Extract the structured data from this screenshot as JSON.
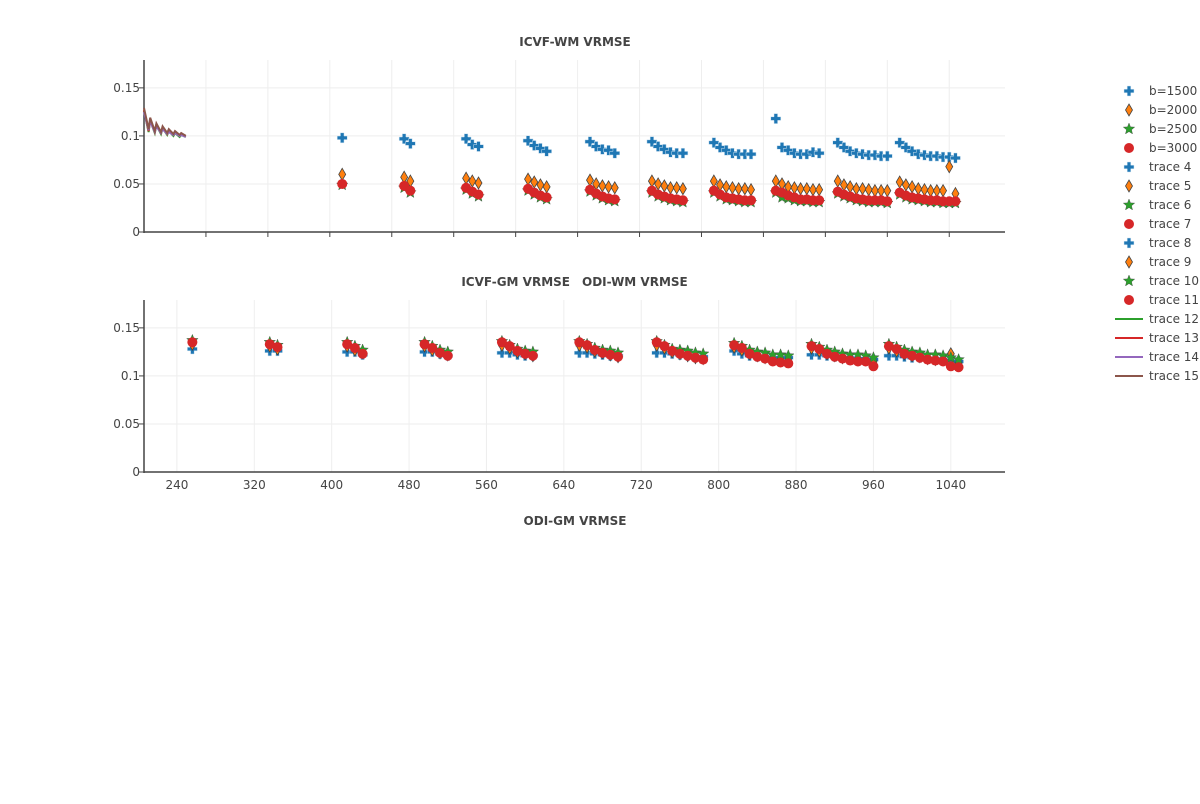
{
  "chart_data": [
    {
      "type": "scatter",
      "title": "ICVF-WM VRMSE",
      "xlim": [
        0,
        1112
      ],
      "ylim": [
        0,
        0.179
      ],
      "x_ticks_shown": false,
      "y_ticks": [
        0,
        0.05,
        0.1,
        0.15
      ],
      "y_tick_labels": [
        "0",
        "0.05",
        "0.1",
        "0.15"
      ],
      "grid": true,
      "series": [
        {
          "name": "b=1500",
          "marker": "cross",
          "color": "#1f77b4",
          "y": [
            [
              0.098
            ],
            [
              0.097,
              0.092
            ],
            [
              0.097,
              0.091,
              0.089
            ],
            [
              0.095,
              0.09,
              0.087,
              0.084
            ],
            [
              0.094,
              0.089,
              0.086,
              0.085,
              0.082
            ],
            [
              0.094,
              0.089,
              0.086,
              0.083,
              0.082,
              0.082
            ],
            [
              0.093,
              0.088,
              0.085,
              0.082,
              0.081,
              0.081,
              0.081
            ],
            [
              0.118,
              0.088,
              0.085,
              0.082,
              0.081,
              0.081,
              0.083,
              0.082
            ],
            [
              0.093,
              0.088,
              0.084,
              0.082,
              0.081,
              0.08,
              0.08,
              0.079,
              0.079
            ],
            [
              0.093,
              0.088,
              0.084,
              0.081,
              0.08,
              0.079,
              0.079,
              0.078,
              0.078,
              0.077
            ]
          ]
        },
        {
          "name": "b=2000",
          "marker": "diamond",
          "color": "#ff7f0e",
          "y": [
            [
              0.06
            ],
            [
              0.057,
              0.053
            ],
            [
              0.056,
              0.053,
              0.051
            ],
            [
              0.055,
              0.052,
              0.049,
              0.047
            ],
            [
              0.054,
              0.05,
              0.048,
              0.047,
              0.046
            ],
            [
              0.053,
              0.05,
              0.048,
              0.046,
              0.046,
              0.045
            ],
            [
              0.053,
              0.049,
              0.047,
              0.046,
              0.045,
              0.045,
              0.044
            ],
            [
              0.053,
              0.05,
              0.047,
              0.046,
              0.045,
              0.045,
              0.044,
              0.044
            ],
            [
              0.053,
              0.049,
              0.047,
              0.045,
              0.045,
              0.044,
              0.043,
              0.043,
              0.043
            ],
            [
              0.052,
              0.049,
              0.047,
              0.045,
              0.044,
              0.043,
              0.043,
              0.043,
              0.068,
              0.04
            ]
          ]
        },
        {
          "name": "b=2500",
          "marker": "star",
          "color": "#2ca02c",
          "y": [
            [
              0.049
            ],
            [
              0.046,
              0.041
            ],
            [
              0.044,
              0.04,
              0.037
            ],
            [
              0.043,
              0.039,
              0.036,
              0.034
            ],
            [
              0.042,
              0.038,
              0.035,
              0.033,
              0.032
            ],
            [
              0.041,
              0.037,
              0.035,
              0.033,
              0.032,
              0.031
            ],
            [
              0.041,
              0.037,
              0.034,
              0.033,
              0.032,
              0.031,
              0.031
            ],
            [
              0.041,
              0.036,
              0.035,
              0.033,
              0.032,
              0.032,
              0.031,
              0.031
            ],
            [
              0.04,
              0.037,
              0.035,
              0.033,
              0.032,
              0.031,
              0.031,
              0.031,
              0.03
            ],
            [
              0.039,
              0.036,
              0.034,
              0.033,
              0.032,
              0.031,
              0.031,
              0.03,
              0.03,
              0.03
            ]
          ]
        },
        {
          "name": "b=3000",
          "marker": "circle",
          "color": "#d62728",
          "y": [
            [
              0.05
            ],
            [
              0.048,
              0.043
            ],
            [
              0.046,
              0.042,
              0.039
            ],
            [
              0.045,
              0.041,
              0.038,
              0.036
            ],
            [
              0.044,
              0.04,
              0.037,
              0.035,
              0.034
            ],
            [
              0.043,
              0.039,
              0.037,
              0.035,
              0.034,
              0.033
            ],
            [
              0.043,
              0.039,
              0.036,
              0.035,
              0.034,
              0.033,
              0.033
            ],
            [
              0.043,
              0.041,
              0.038,
              0.036,
              0.034,
              0.034,
              0.033,
              0.033
            ],
            [
              0.042,
              0.039,
              0.037,
              0.035,
              0.034,
              0.033,
              0.033,
              0.033,
              0.032
            ],
            [
              0.041,
              0.038,
              0.036,
              0.035,
              0.034,
              0.033,
              0.033,
              0.032,
              0.032,
              0.032
            ]
          ]
        },
        {
          "name": "trace 12",
          "line": true,
          "color": "#2ca02c",
          "x": [
            0,
            6,
            8,
            14,
            16,
            22,
            24,
            30,
            32,
            38,
            40,
            46,
            48,
            54
          ],
          "y": [
            0.126,
            0.104,
            0.116,
            0.103,
            0.111,
            0.102,
            0.108,
            0.101,
            0.105,
            0.1,
            0.103,
            0.099,
            0.101,
            0.099
          ]
        },
        {
          "name": "trace 13",
          "line": true,
          "color": "#d62728",
          "x": [
            0,
            6,
            8,
            14,
            16,
            22,
            24,
            30,
            32,
            38,
            40,
            46,
            48,
            54
          ],
          "y": [
            0.127,
            0.105,
            0.117,
            0.104,
            0.112,
            0.103,
            0.109,
            0.102,
            0.106,
            0.101,
            0.104,
            0.1,
            0.102,
            0.1
          ]
        },
        {
          "name": "trace 14",
          "line": true,
          "color": "#9467bd",
          "x": [
            0,
            6,
            8,
            14,
            16,
            22,
            24,
            30,
            32,
            38,
            40,
            46,
            48,
            54
          ],
          "y": [
            0.125,
            0.106,
            0.115,
            0.104,
            0.11,
            0.103,
            0.107,
            0.102,
            0.104,
            0.101,
            0.103,
            0.1,
            0.101,
            0.099
          ]
        },
        {
          "name": "trace 15",
          "line": true,
          "color": "#8c564b",
          "x": [
            0,
            6,
            8,
            14,
            16,
            22,
            24,
            30,
            32,
            38,
            40,
            46,
            48,
            54
          ],
          "y": [
            0.129,
            0.107,
            0.119,
            0.105,
            0.113,
            0.104,
            0.11,
            0.103,
            0.107,
            0.102,
            0.105,
            0.101,
            0.103,
            0.1
          ]
        }
      ]
    },
    {
      "type": "scatter",
      "title": "ICVF-GM VRMSE",
      "title_overlap": "ODI-WM VRMSE",
      "xlim": [
        206,
        1096
      ],
      "ylim": [
        0,
        0.179
      ],
      "x_ticks": [
        240,
        320,
        400,
        480,
        560,
        640,
        720,
        800,
        880,
        960,
        1040
      ],
      "x_tick_labels": [
        "240",
        "320",
        "400",
        "480",
        "560",
        "640",
        "720",
        "800",
        "880",
        "960",
        "1040"
      ],
      "y_ticks": [
        0,
        0.05,
        0.1,
        0.15
      ],
      "y_tick_labels": [
        "0",
        "0.05",
        "0.1",
        "0.15"
      ],
      "grid": true,
      "series": [
        {
          "name": "trace 8",
          "marker": "cross",
          "color": "#1f77b4",
          "y": [
            [
              0.128
            ],
            [
              0.126,
              0.126
            ],
            [
              0.125,
              0.125,
              0.122
            ],
            [
              0.125,
              0.125,
              0.123,
              0.121
            ],
            [
              0.124,
              0.124,
              0.122,
              0.121,
              0.121
            ],
            [
              0.124,
              0.124,
              0.123,
              0.122,
              0.121,
              0.121
            ],
            [
              0.124,
              0.124,
              0.123,
              0.122,
              0.121,
              0.12,
              0.12
            ],
            [
              0.126,
              0.123,
              0.121,
              0.12,
              0.12,
              0.119,
              0.119,
              0.119
            ],
            [
              0.122,
              0.122,
              0.121,
              0.12,
              0.119,
              0.119,
              0.118,
              0.118,
              0.117
            ],
            [
              0.121,
              0.121,
              0.12,
              0.119,
              0.119,
              0.118,
              0.118,
              0.117,
              0.116,
              0.115
            ]
          ]
        },
        {
          "name": "trace 9",
          "marker": "diamond",
          "color": "#ff7f0e",
          "y": [
            [
              0.133
            ],
            [
              0.131,
              0.128
            ],
            [
              0.131,
              0.127,
              0.124
            ],
            [
              0.131,
              0.127,
              0.124,
              0.122
            ],
            [
              0.132,
              0.129,
              0.125,
              0.123,
              0.121
            ],
            [
              0.132,
              0.13,
              0.126,
              0.124,
              0.122,
              0.12
            ],
            [
              0.132,
              0.129,
              0.125,
              0.123,
              0.121,
              0.119,
              0.118
            ],
            [
              0.13,
              0.127,
              0.123,
              0.121,
              0.119,
              0.117,
              0.116,
              0.116
            ],
            [
              0.129,
              0.126,
              0.123,
              0.121,
              0.119,
              0.118,
              0.117,
              0.117,
              0.115
            ],
            [
              0.129,
              0.126,
              0.123,
              0.121,
              0.12,
              0.118,
              0.117,
              0.117,
              0.123,
              0.113
            ]
          ]
        },
        {
          "name": "trace 10",
          "marker": "star",
          "color": "#2ca02c",
          "y": [
            [
              0.137
            ],
            [
              0.135,
              0.132
            ],
            [
              0.135,
              0.131,
              0.127
            ],
            [
              0.135,
              0.131,
              0.127,
              0.125
            ],
            [
              0.136,
              0.132,
              0.128,
              0.126,
              0.125
            ],
            [
              0.136,
              0.133,
              0.129,
              0.127,
              0.126,
              0.124
            ],
            [
              0.136,
              0.132,
              0.128,
              0.127,
              0.126,
              0.124,
              0.123
            ],
            [
              0.134,
              0.131,
              0.127,
              0.125,
              0.124,
              0.122,
              0.122,
              0.121
            ],
            [
              0.133,
              0.13,
              0.127,
              0.125,
              0.123,
              0.122,
              0.122,
              0.121,
              0.119
            ],
            [
              0.133,
              0.13,
              0.127,
              0.125,
              0.124,
              0.122,
              0.122,
              0.121,
              0.119,
              0.117
            ]
          ]
        },
        {
          "name": "trace 11",
          "marker": "circle",
          "color": "#d62728",
          "y": [
            [
              0.135
            ],
            [
              0.133,
              0.13
            ],
            [
              0.133,
              0.129,
              0.123
            ],
            [
              0.133,
              0.129,
              0.124,
              0.121
            ],
            [
              0.135,
              0.131,
              0.126,
              0.123,
              0.121
            ],
            [
              0.135,
              0.132,
              0.127,
              0.124,
              0.122,
              0.12
            ],
            [
              0.135,
              0.131,
              0.126,
              0.123,
              0.121,
              0.119,
              0.117
            ],
            [
              0.132,
              0.129,
              0.123,
              0.12,
              0.118,
              0.115,
              0.114,
              0.113
            ],
            [
              0.131,
              0.128,
              0.123,
              0.12,
              0.118,
              0.116,
              0.115,
              0.115,
              0.11
            ],
            [
              0.131,
              0.128,
              0.123,
              0.121,
              0.119,
              0.117,
              0.116,
              0.115,
              0.11,
              0.109
            ]
          ]
        }
      ]
    },
    {
      "type": "scatter",
      "title": "ODI-GM VRMSE",
      "series": [
        {
          "name": "trace 4",
          "marker": "cross",
          "color": "#1f77b4",
          "y": []
        },
        {
          "name": "trace 5",
          "marker": "diamond",
          "color": "#ff7f0e",
          "y": []
        },
        {
          "name": "trace 6",
          "marker": "star",
          "color": "#2ca02c",
          "y": []
        },
        {
          "name": "trace 7",
          "marker": "circle",
          "color": "#d62728",
          "y": []
        }
      ]
    }
  ],
  "x_clusters": {
    "start": 256,
    "cluster_step": 80,
    "point_step": 8
  },
  "legend": {
    "placement": "right",
    "items": [
      {
        "label": "b=1500",
        "marker": "cross",
        "color": "#1f77b4"
      },
      {
        "label": "b=2000",
        "marker": "diamond",
        "color": "#ff7f0e"
      },
      {
        "label": "b=2500",
        "marker": "star",
        "color": "#2ca02c"
      },
      {
        "label": "b=3000",
        "marker": "circle",
        "color": "#d62728"
      },
      {
        "label": "trace 4",
        "marker": "cross",
        "color": "#1f77b4"
      },
      {
        "label": "trace 5",
        "marker": "diamond",
        "color": "#ff7f0e"
      },
      {
        "label": "trace 6",
        "marker": "star",
        "color": "#2ca02c"
      },
      {
        "label": "trace 7",
        "marker": "circle",
        "color": "#d62728"
      },
      {
        "label": "trace 8",
        "marker": "cross",
        "color": "#1f77b4"
      },
      {
        "label": "trace 9",
        "marker": "diamond",
        "color": "#ff7f0e"
      },
      {
        "label": "trace 10",
        "marker": "star",
        "color": "#2ca02c"
      },
      {
        "label": "trace 11",
        "marker": "circle",
        "color": "#d62728"
      },
      {
        "label": "trace 12",
        "marker": "line",
        "color": "#2ca02c"
      },
      {
        "label": "trace 13",
        "marker": "line",
        "color": "#d62728"
      },
      {
        "label": "trace 14",
        "marker": "line",
        "color": "#9467bd"
      },
      {
        "label": "trace 15",
        "marker": "line",
        "color": "#8c564b"
      }
    ]
  }
}
